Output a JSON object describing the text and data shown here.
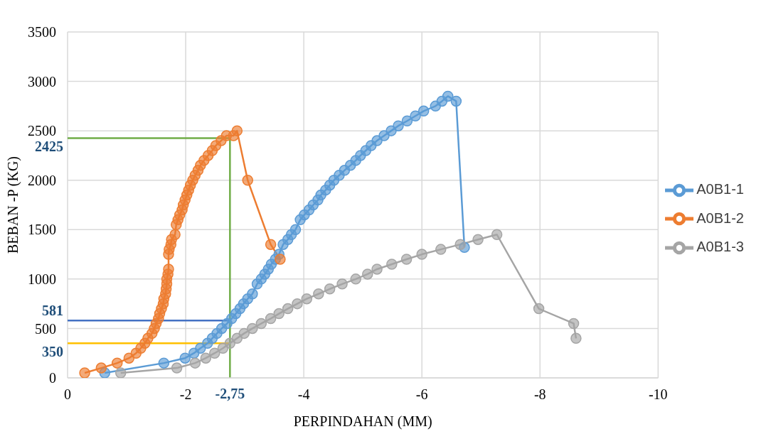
{
  "chart_data": {
    "type": "line",
    "xlabel": "PERPINDAHAN (MM)",
    "ylabel": "BEBAN -P (KG)",
    "xlim": [
      0,
      -10
    ],
    "xticks": [
      0,
      -2,
      -4,
      -6,
      -8,
      -10
    ],
    "ylim": [
      0,
      3500
    ],
    "yticks": [
      0,
      500,
      1000,
      1500,
      2000,
      2500,
      3000,
      3500
    ],
    "grid": true,
    "legend": "right",
    "marker": "circle",
    "series": [
      {
        "name": "A0B1-1",
        "color": "#5b9bd5",
        "x": [
          -0.63,
          -1.63,
          -1.99,
          -2.14,
          -2.25,
          -2.37,
          -2.45,
          -2.53,
          -2.61,
          -2.7,
          -2.78,
          -2.85,
          -2.92,
          -2.98,
          -3.05,
          -3.13,
          -3.21,
          -3.28,
          -3.34,
          -3.4,
          -3.45,
          -3.52,
          -3.58,
          -3.65,
          -3.73,
          -3.79,
          -3.86,
          -3.94,
          -4.01,
          -4.09,
          -4.16,
          -4.24,
          -4.29,
          -4.37,
          -4.44,
          -4.51,
          -4.6,
          -4.69,
          -4.79,
          -4.88,
          -4.96,
          -5.05,
          -5.14,
          -5.24,
          -5.36,
          -5.48,
          -5.6,
          -5.75,
          -5.89,
          -6.03,
          -6.23,
          -6.34,
          -6.44,
          -6.58,
          -6.72
        ],
        "values": [
          50,
          150,
          200,
          250,
          300,
          350,
          400,
          450,
          500,
          550,
          600,
          650,
          700,
          750,
          800,
          850,
          950,
          1000,
          1050,
          1100,
          1150,
          1200,
          1250,
          1350,
          1400,
          1450,
          1500,
          1600,
          1650,
          1700,
          1750,
          1800,
          1850,
          1900,
          1950,
          2000,
          2050,
          2100,
          2150,
          2200,
          2250,
          2300,
          2350,
          2400,
          2450,
          2500,
          2550,
          2600,
          2650,
          2700,
          2750,
          2800,
          2850,
          2800,
          1320
        ]
      },
      {
        "name": "A0B1-2",
        "color": "#ed7d31",
        "x": [
          -0.29,
          -0.57,
          -0.84,
          -1.04,
          -1.16,
          -1.24,
          -1.31,
          -1.36,
          -1.43,
          -1.47,
          -1.5,
          -1.54,
          -1.56,
          -1.59,
          -1.62,
          -1.63,
          -1.66,
          -1.67,
          -1.68,
          -1.68,
          -1.7,
          -1.71,
          -1.71,
          -1.72,
          -1.75,
          -1.76,
          -1.82,
          -1.84,
          -1.87,
          -1.9,
          -1.94,
          -1.96,
          -1.99,
          -2.02,
          -2.05,
          -2.08,
          -2.12,
          -2.16,
          -2.21,
          -2.25,
          -2.31,
          -2.38,
          -2.45,
          -2.51,
          -2.6,
          -2.69,
          -2.81,
          -2.87,
          -3.05,
          -3.44,
          -3.6
        ],
        "values": [
          50,
          100,
          150,
          200,
          250,
          300,
          350,
          400,
          450,
          500,
          550,
          600,
          650,
          700,
          750,
          800,
          850,
          900,
          950,
          1000,
          1050,
          1100,
          1250,
          1300,
          1350,
          1400,
          1450,
          1550,
          1600,
          1650,
          1700,
          1750,
          1800,
          1850,
          1900,
          1950,
          2000,
          2050,
          2100,
          2150,
          2200,
          2250,
          2300,
          2350,
          2400,
          2450,
          2450,
          2500,
          2000,
          1350,
          1200
        ]
      },
      {
        "name": "A0B1-3",
        "color": "#a5a5a5",
        "x": [
          -0.9,
          -1.85,
          -2.16,
          -2.34,
          -2.49,
          -2.63,
          -2.75,
          -2.87,
          -2.99,
          -3.13,
          -3.28,
          -3.44,
          -3.58,
          -3.73,
          -3.89,
          -4.05,
          -4.25,
          -4.44,
          -4.65,
          -4.88,
          -5.08,
          -5.24,
          -5.49,
          -5.74,
          -6.0,
          -6.32,
          -6.65,
          -6.95,
          -7.27,
          -7.98,
          -8.57,
          -8.61
        ],
        "values": [
          50,
          100,
          150,
          200,
          250,
          300,
          350,
          400,
          450,
          500,
          550,
          600,
          650,
          700,
          750,
          800,
          850,
          900,
          950,
          1000,
          1050,
          1100,
          1150,
          1200,
          1250,
          1300,
          1350,
          1400,
          1450,
          700,
          550,
          400
        ]
      }
    ],
    "ref_lines": [
      {
        "axis": "y",
        "value": 2425,
        "label": "2425",
        "color": "#70ad47"
      },
      {
        "axis": "y",
        "value": 581,
        "label": "581",
        "color": "#4472c4"
      },
      {
        "axis": "y",
        "value": 350,
        "label": "350",
        "color": "#ffc000"
      },
      {
        "axis": "x",
        "value": -2.75,
        "label": "-2,75",
        "color": "#70ad47"
      }
    ]
  }
}
